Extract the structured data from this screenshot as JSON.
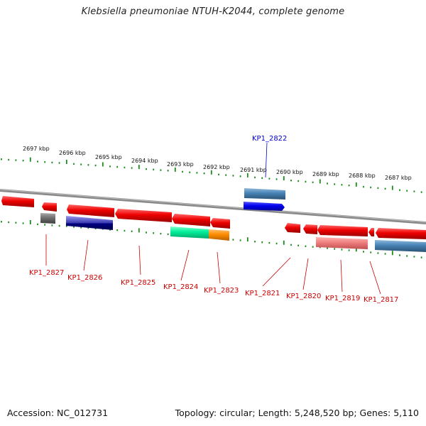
{
  "title": "Klebsiella pneumoniae NTUH-K2044, complete genome",
  "footer": {
    "accession": "Accession: NC_012731",
    "topology": "Topology: circular; Length: 5,248,520 bp; Genes: 5,110"
  },
  "colors": {
    "backbone": "#808080",
    "ticks": "#1a8a1a",
    "gene_label_red": "#cc0000",
    "gene_label_blue": "#0000cc"
  },
  "ruler_labels": [
    "2697 kbp",
    "2696 kbp",
    "2695 kbp",
    "2694 kbp",
    "2693 kbp",
    "2692 kbp",
    "2691 kbp",
    "2690 kbp",
    "2689 kbp",
    "2688 kbp",
    "2687 kbp"
  ],
  "gene_labels": [
    "KP1_2827",
    "KP1_2826",
    "KP1_2825",
    "KP1_2824",
    "KP1_2823",
    "KP1_2822",
    "KP1_2821",
    "KP1_2820",
    "KP1_2819",
    "KP1_2817"
  ],
  "feature_colors": {
    "cds": "#ee0000",
    "highlight": "#0000ee",
    "steelblue": "#4682b4",
    "navy": "#000080",
    "slate": "#6a6acd",
    "gray": "#707070",
    "spring": "#00ee99",
    "orange": "#ff8c00",
    "pink": "#f08080"
  }
}
